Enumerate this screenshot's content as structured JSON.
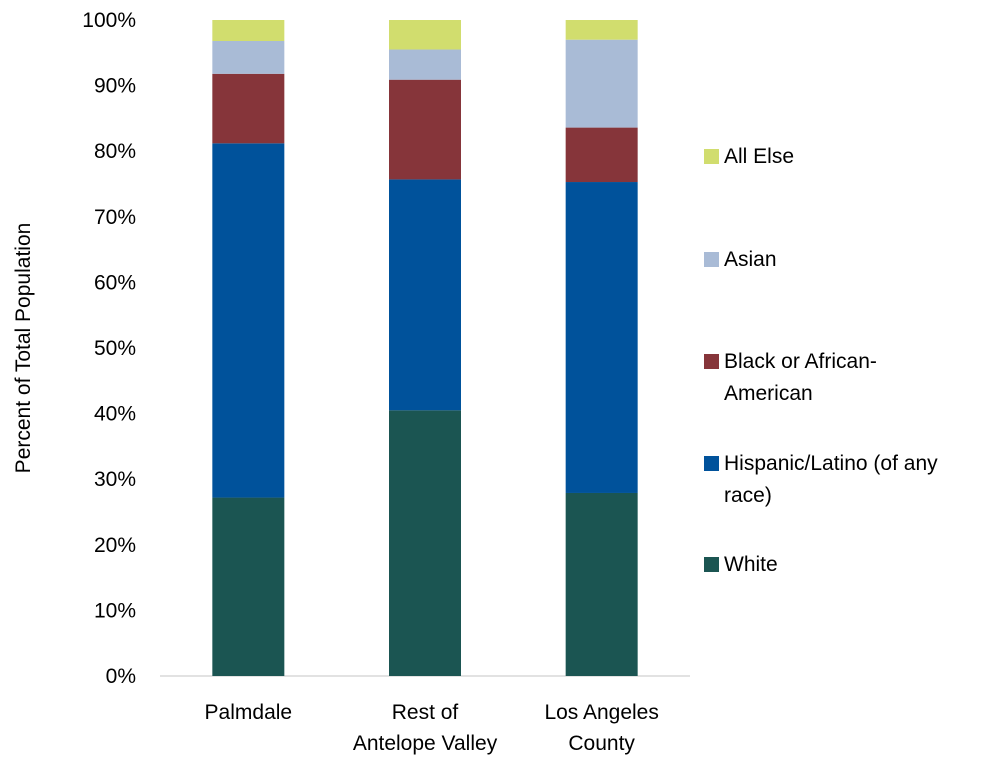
{
  "chart_data": {
    "type": "bar",
    "stacked": true,
    "ylabel": "Percent of Total Population",
    "xlabel": "",
    "ylim": [
      0,
      100
    ],
    "y_ticks": [
      "0%",
      "10%",
      "20%",
      "30%",
      "40%",
      "50%",
      "60%",
      "70%",
      "80%",
      "90%",
      "100%"
    ],
    "categories": [
      [
        "Palmdale"
      ],
      [
        "Rest of",
        "Antelope Valley"
      ],
      [
        "Los Angeles",
        "County"
      ]
    ],
    "series": [
      {
        "name": "White",
        "color": "#1b5552",
        "values": [
          27.2,
          40.5,
          27.9
        ]
      },
      {
        "name": "Hispanic/Latino (of any race)",
        "color": "#00529b",
        "values": [
          54.0,
          35.2,
          47.4
        ]
      },
      {
        "name": "Black or African-American",
        "color": "#86353a",
        "values": [
          10.6,
          15.2,
          8.3
        ]
      },
      {
        "name": "Asian",
        "color": "#a9bbd6",
        "values": [
          5.0,
          4.6,
          13.4
        ]
      },
      {
        "name": "All Else",
        "color": "#d1dd6e",
        "values": [
          3.2,
          4.5,
          3.0
        ]
      }
    ],
    "legend": {
      "placement": "right",
      "order": [
        {
          "lines": [
            "All Else"
          ],
          "series": 4
        },
        {
          "lines": [
            "Asian"
          ],
          "series": 3
        },
        {
          "lines": [
            "Black or African-",
            "American"
          ],
          "series": 2
        },
        {
          "lines": [
            "Hispanic/Latino (of any",
            "race)"
          ],
          "series": 1
        },
        {
          "lines": [
            "White"
          ],
          "series": 0
        }
      ]
    },
    "grid": false
  }
}
